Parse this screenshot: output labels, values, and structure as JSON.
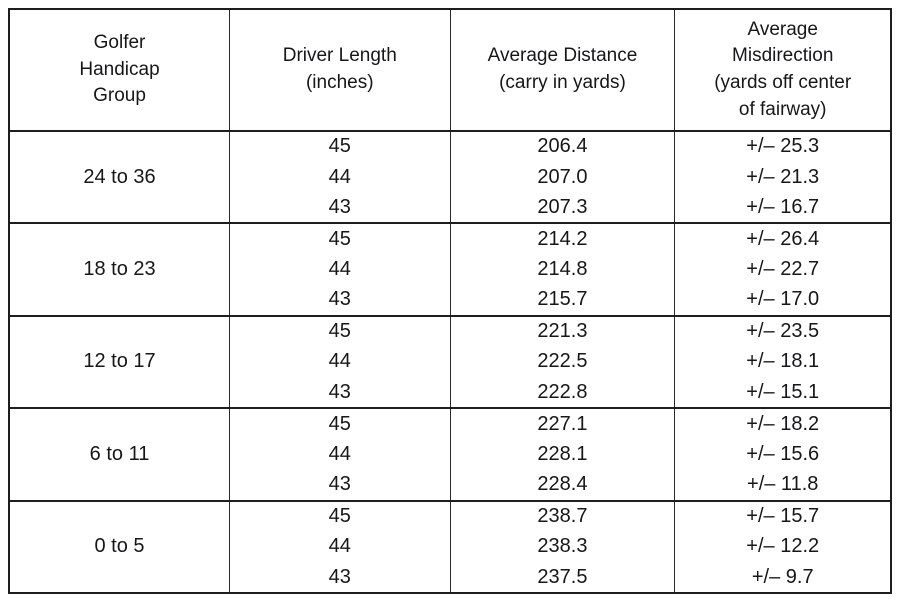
{
  "page": {
    "background": "#ffffff"
  },
  "colors": {
    "text": "#17171a",
    "border": "#1e1e1e"
  },
  "table": {
    "headers": {
      "handicap": "Golfer\nHandicap\nGroup",
      "driver_length": "Driver Length\n(inches)",
      "distance": "Average Distance\n(carry in yards)",
      "misdirection": "Average\nMisdirection\n(yards off center\nof fairway)"
    },
    "groups": [
      {
        "label": "24 to 36",
        "rows": [
          {
            "length": "45",
            "distance": "206.4",
            "misdirection": "+/– 25.3"
          },
          {
            "length": "44",
            "distance": "207.0",
            "misdirection": "+/– 21.3"
          },
          {
            "length": "43",
            "distance": "207.3",
            "misdirection": "+/– 16.7"
          }
        ]
      },
      {
        "label": "18 to 23",
        "rows": [
          {
            "length": "45",
            "distance": "214.2",
            "misdirection": "+/– 26.4"
          },
          {
            "length": "44",
            "distance": "214.8",
            "misdirection": "+/– 22.7"
          },
          {
            "length": "43",
            "distance": "215.7",
            "misdirection": "+/– 17.0"
          }
        ]
      },
      {
        "label": "12 to 17",
        "rows": [
          {
            "length": "45",
            "distance": "221.3",
            "misdirection": "+/– 23.5"
          },
          {
            "length": "44",
            "distance": "222.5",
            "misdirection": "+/– 18.1"
          },
          {
            "length": "43",
            "distance": "222.8",
            "misdirection": "+/– 15.1"
          }
        ]
      },
      {
        "label": "6 to 11",
        "rows": [
          {
            "length": "45",
            "distance": "227.1",
            "misdirection": "+/– 18.2"
          },
          {
            "length": "44",
            "distance": "228.1",
            "misdirection": "+/– 15.6"
          },
          {
            "length": "43",
            "distance": "228.4",
            "misdirection": "+/– 11.8"
          }
        ]
      },
      {
        "label": "0 to 5",
        "rows": [
          {
            "length": "45",
            "distance": "238.7",
            "misdirection": "+/– 15.7"
          },
          {
            "length": "44",
            "distance": "238.3",
            "misdirection": "+/– 12.2"
          },
          {
            "length": "43",
            "distance": "237.5",
            "misdirection": "+/– 9.7"
          }
        ]
      }
    ]
  },
  "chart_data": {
    "type": "table",
    "columns": [
      "Golfer Handicap Group",
      "Driver Length (inches)",
      "Average Distance (carry in yards)",
      "Average Misdirection (yards off center of fairway)"
    ],
    "rows": [
      [
        "24 to 36",
        45,
        206.4,
        "+/– 25.3"
      ],
      [
        "24 to 36",
        44,
        207.0,
        "+/– 21.3"
      ],
      [
        "24 to 36",
        43,
        207.3,
        "+/– 16.7"
      ],
      [
        "18 to 23",
        45,
        214.2,
        "+/– 26.4"
      ],
      [
        "18 to 23",
        44,
        214.8,
        "+/– 22.7"
      ],
      [
        "18 to 23",
        43,
        215.7,
        "+/– 17.0"
      ],
      [
        "12 to 17",
        45,
        221.3,
        "+/– 23.5"
      ],
      [
        "12 to 17",
        44,
        222.5,
        "+/– 18.1"
      ],
      [
        "12 to 17",
        43,
        222.8,
        "+/– 15.1"
      ],
      [
        "6 to 11",
        45,
        227.1,
        "+/– 18.2"
      ],
      [
        "6 to 11",
        44,
        228.1,
        "+/– 15.6"
      ],
      [
        "6 to 11",
        43,
        228.4,
        "+/– 11.8"
      ],
      [
        "0 to 5",
        45,
        238.7,
        "+/– 15.7"
      ],
      [
        "0 to 5",
        44,
        238.3,
        "+/– 12.2"
      ],
      [
        "0 to 5",
        43,
        237.5,
        "+/– 9.7"
      ]
    ]
  }
}
